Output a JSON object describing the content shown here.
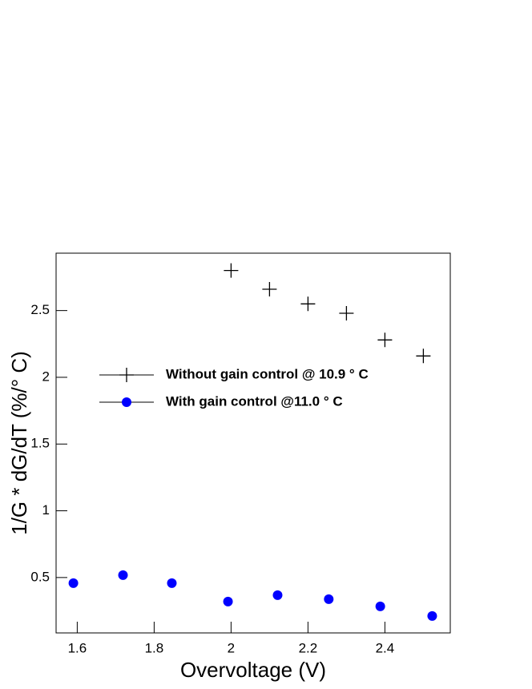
{
  "chart_data": {
    "type": "scatter",
    "x_label": "Overvoltage (V)",
    "y_label": "1/G * dG/dT (%/° C)",
    "xlim": [
      1.545,
      2.57
    ],
    "ylim": [
      0.085,
      2.93
    ],
    "xticks": [
      1.6,
      1.8,
      2,
      2.2,
      2.4
    ],
    "yticks": [
      0.5,
      1,
      1.5,
      2,
      2.5
    ],
    "series": [
      {
        "name": "Without gain control @ 10.9 ° C",
        "color": "#000000",
        "marker": "plus",
        "x": [
          2.0,
          2.1,
          2.2,
          2.3,
          2.4,
          2.5
        ],
        "values": [
          2.8,
          2.66,
          2.55,
          2.48,
          2.28,
          2.16
        ]
      },
      {
        "name": "With gain control @11.0 ° C",
        "color": "#0000ff",
        "marker": "circle",
        "x": [
          1.59,
          1.719,
          1.846,
          1.992,
          2.121,
          2.254,
          2.388,
          2.523
        ],
        "values": [
          0.458,
          0.518,
          0.458,
          0.32,
          0.368,
          0.338,
          0.284,
          0.212
        ]
      }
    ]
  }
}
